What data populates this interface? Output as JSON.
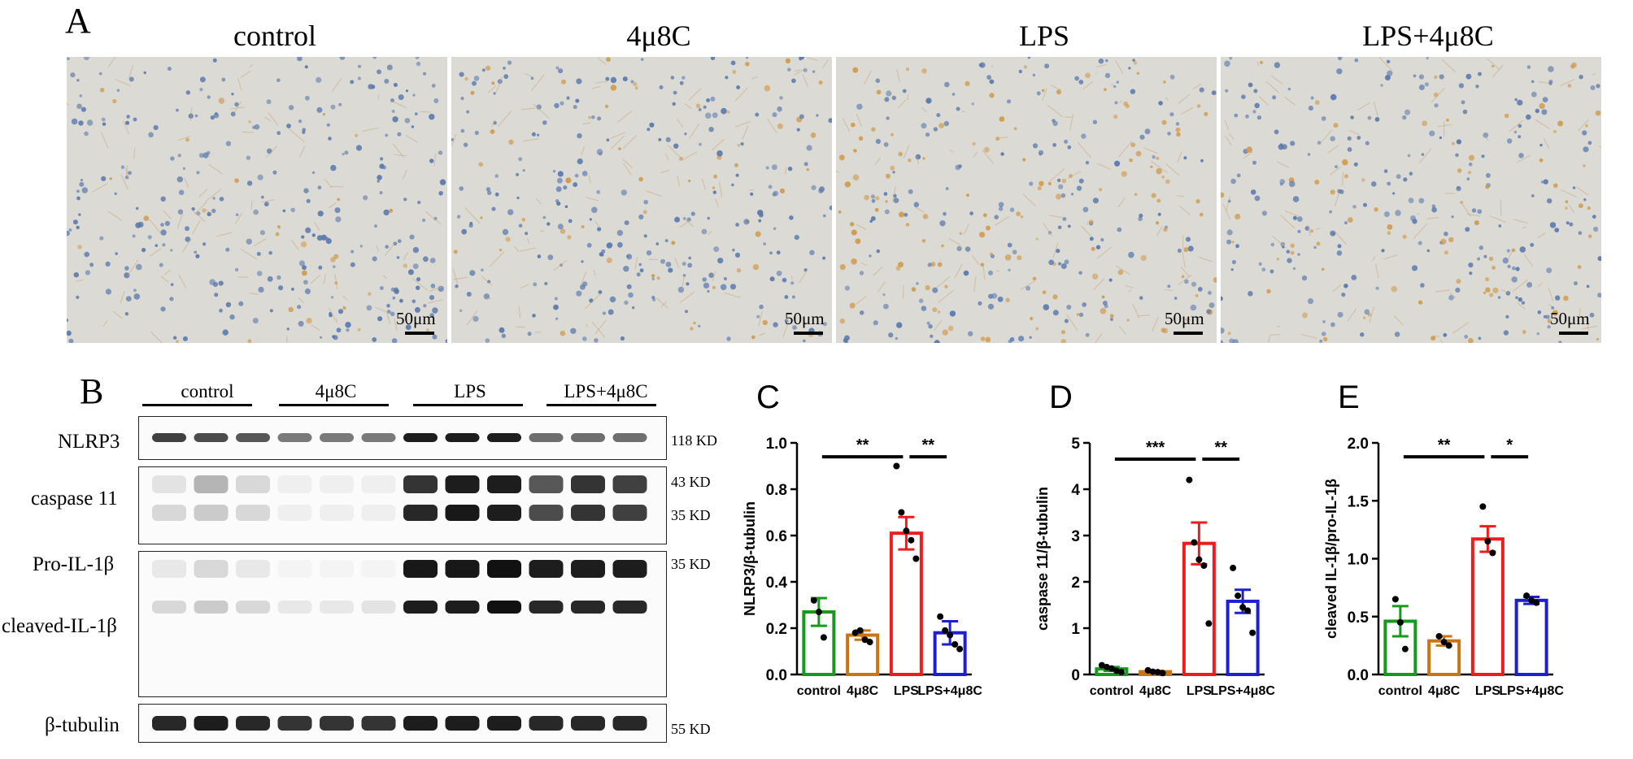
{
  "panelA": {
    "letter": "A",
    "images": [
      {
        "title": "control",
        "scale": "50μm"
      },
      {
        "title": "4μ8C",
        "scale": "50μm"
      },
      {
        "title": "LPS",
        "scale": "50μm"
      },
      {
        "title": "LPS+4μ8C",
        "scale": "50μm"
      }
    ]
  },
  "panelB": {
    "letter": "B",
    "groups": [
      "control",
      "4μ8C",
      "LPS",
      "LPS+4μ8C"
    ],
    "proteins": [
      "NLRP3",
      "caspase 11",
      "Pro-IL-1β",
      "cleaved-IL-1β",
      "β-tubulin"
    ],
    "sizes": [
      "118 KD",
      "43 KD",
      "35 KD",
      "35 KD",
      "55 KD"
    ]
  },
  "chart_data": [
    {
      "panel": "C",
      "type": "bar",
      "categories": [
        "control",
        "4μ8C",
        "LPS",
        "LPS+4μ8C"
      ],
      "values": [
        0.27,
        0.17,
        0.61,
        0.18
      ],
      "errors": [
        0.06,
        0.02,
        0.07,
        0.05
      ],
      "points": [
        [
          0.32,
          0.27,
          0.16
        ],
        [
          0.18,
          0.19,
          0.15,
          0.14
        ],
        [
          0.9,
          0.7,
          0.62,
          0.58,
          0.5
        ],
        [
          0.25,
          0.19,
          0.17,
          0.13,
          0.11
        ]
      ],
      "colors": [
        "#159a1d",
        "#c97514",
        "#ee1c1c",
        "#1e1ed2"
      ],
      "ylabel": "NLRP3/β-tubulin",
      "ylim": [
        0,
        1.0
      ],
      "yticks": [
        "0.0",
        "0.2",
        "0.4",
        "0.6",
        "0.8",
        "1.0"
      ],
      "brackets": [
        {
          "from": 0,
          "to": 2,
          "label": "**",
          "y": 0.94
        },
        {
          "from": 2,
          "to": 3,
          "label": "**",
          "y": 0.94
        }
      ]
    },
    {
      "panel": "D",
      "type": "bar",
      "categories": [
        "control",
        "4μ8C",
        "LPS",
        "LPS+4μ8C"
      ],
      "values": [
        0.12,
        0.06,
        2.83,
        1.58
      ],
      "errors": [
        0.04,
        0.02,
        0.45,
        0.25
      ],
      "points": [
        [
          0.2,
          0.16,
          0.13,
          0.08,
          0.05
        ],
        [
          0.09,
          0.06,
          0.05,
          0.03
        ],
        [
          4.2,
          2.85,
          2.48,
          2.35,
          1.1
        ],
        [
          2.3,
          1.7,
          1.45,
          1.38,
          0.9
        ]
      ],
      "colors": [
        "#159a1d",
        "#c97514",
        "#ee1c1c",
        "#1e1ed2"
      ],
      "ylabel": "caspase 11/β-tubulin",
      "ylim": [
        0,
        5
      ],
      "yticks": [
        "0",
        "1",
        "2",
        "3",
        "4",
        "5"
      ],
      "brackets": [
        {
          "from": 0,
          "to": 2,
          "label": "***",
          "y": 4.65
        },
        {
          "from": 2,
          "to": 3,
          "label": "**",
          "y": 4.65
        }
      ]
    },
    {
      "panel": "E",
      "type": "bar",
      "categories": [
        "control",
        "4μ8C",
        "LPS",
        "LPS+4μ8C"
      ],
      "values": [
        0.46,
        0.29,
        1.17,
        0.64
      ],
      "errors": [
        0.13,
        0.04,
        0.11,
        0.03
      ],
      "points": [
        [
          0.65,
          0.45,
          0.22
        ],
        [
          0.33,
          0.28,
          0.25
        ],
        [
          1.45,
          1.15,
          1.05
        ],
        [
          0.68,
          0.64,
          0.62
        ]
      ],
      "colors": [
        "#159a1d",
        "#c97514",
        "#ee1c1c",
        "#1e1ed2"
      ],
      "ylabel": "cleaved IL-1β/pro-IL-1β",
      "ylim": [
        0,
        2.0
      ],
      "yticks": [
        "0.0",
        "0.5",
        "1.0",
        "1.5",
        "2.0"
      ],
      "brackets": [
        {
          "from": 0,
          "to": 2,
          "label": "**",
          "y": 1.88
        },
        {
          "from": 2,
          "to": 3,
          "label": "*",
          "y": 1.88
        }
      ]
    }
  ]
}
